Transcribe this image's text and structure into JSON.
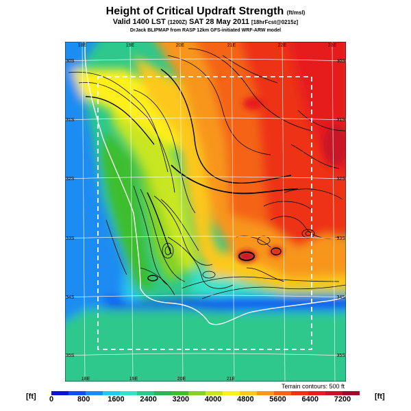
{
  "header": {
    "title": "Height of Critical Updraft Strength",
    "title_unit": "(ft/msl)",
    "valid_prefix": "Valid 1400 LST",
    "valid_utc": "(1200Z)",
    "valid_date": "SAT 28 May 2011",
    "forecast_tag": "[18hrFcst@0215z]",
    "credit": "DrJack BLIPMAP from RASP 12km GFS-initiated WRF-ARW model"
  },
  "map": {
    "lon_labels_top": [
      "18E",
      "19E",
      "20E",
      "21E",
      "22E",
      "23E"
    ],
    "lon_labels_bottom": [
      "18E",
      "19E",
      "20E",
      "21E"
    ],
    "lat_labels_left": [
      "30S",
      "31S",
      "32S",
      "33S",
      "34S",
      "35S"
    ],
    "lat_labels_right": [
      "30S",
      "31S",
      "32S",
      "33S",
      "34S",
      "35S"
    ],
    "terrain_note": "Terrain contours: 500 ft"
  },
  "colorbar": {
    "unit_left": "[ft]",
    "unit_right": "[ft]",
    "tick_labels": [
      "0",
      "800",
      "1600",
      "2400",
      "3200",
      "4000",
      "4800",
      "5600",
      "6400",
      "7200"
    ],
    "colors": [
      "#0a14d2",
      "#0f4df0",
      "#1a8cf2",
      "#26c8f0",
      "#37e1c8",
      "#2ec88c",
      "#2db450",
      "#3cbe2d",
      "#82d228",
      "#c8e620",
      "#fff01e",
      "#fcc81e",
      "#f8961e",
      "#f46414",
      "#ee3214",
      "#e61e1e",
      "#c81428",
      "#a00a2d"
    ]
  }
}
